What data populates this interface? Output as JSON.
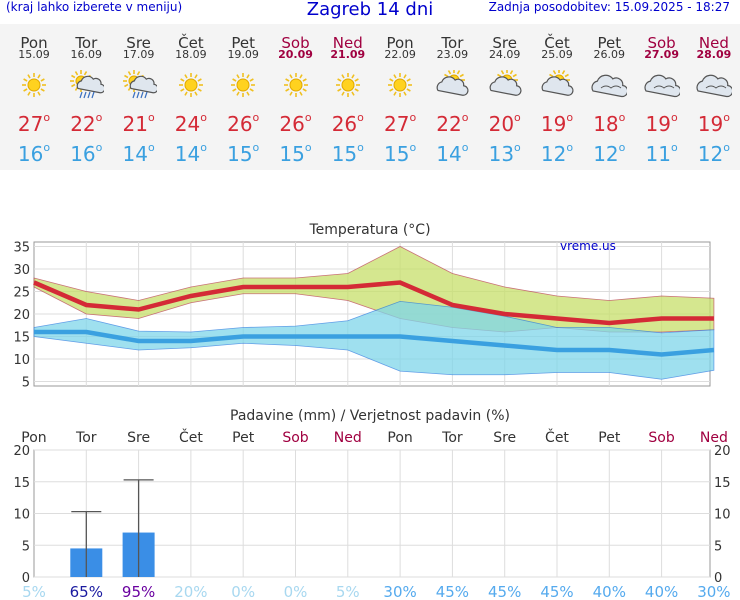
{
  "header": {
    "left_note": "(kraj lahko izberete v meniju)",
    "title": "Zagreb 14 dni",
    "updated": "Zadnja posodobitev: 15.09.2025 - 18:27"
  },
  "watermark": "vreme.us",
  "days": [
    {
      "name": "Pon",
      "date": "15.09",
      "weekend": false,
      "icon": "sunny-icon",
      "tmax": "27",
      "tmin": "16"
    },
    {
      "name": "Tor",
      "date": "16.09",
      "weekend": false,
      "icon": "sun-cloud-rain-icon",
      "tmax": "22",
      "tmin": "16"
    },
    {
      "name": "Sre",
      "date": "17.09",
      "weekend": false,
      "icon": "sun-cloud-rain-icon",
      "tmax": "21",
      "tmin": "14"
    },
    {
      "name": "Čet",
      "date": "18.09",
      "weekend": false,
      "icon": "sunny-icon",
      "tmax": "24",
      "tmin": "14"
    },
    {
      "name": "Pet",
      "date": "19.09",
      "weekend": false,
      "icon": "sunny-icon",
      "tmax": "26",
      "tmin": "15"
    },
    {
      "name": "Sob",
      "date": "20.09",
      "weekend": true,
      "icon": "sunny-icon",
      "tmax": "26",
      "tmin": "15"
    },
    {
      "name": "Ned",
      "date": "21.09",
      "weekend": true,
      "icon": "sunny-icon",
      "tmax": "26",
      "tmin": "15"
    },
    {
      "name": "Pon",
      "date": "22.09",
      "weekend": false,
      "icon": "sunny-icon",
      "tmax": "27",
      "tmin": "15"
    },
    {
      "name": "Tor",
      "date": "23.09",
      "weekend": false,
      "icon": "partly-cloudy-icon",
      "tmax": "22",
      "tmin": "14"
    },
    {
      "name": "Sre",
      "date": "24.09",
      "weekend": false,
      "icon": "partly-cloudy-icon",
      "tmax": "20",
      "tmin": "13"
    },
    {
      "name": "Čet",
      "date": "25.09",
      "weekend": false,
      "icon": "partly-cloudy-icon",
      "tmax": "19",
      "tmin": "12"
    },
    {
      "name": "Pet",
      "date": "26.09",
      "weekend": false,
      "icon": "cloudy-icon",
      "tmax": "18",
      "tmin": "12"
    },
    {
      "name": "Sob",
      "date": "27.09",
      "weekend": true,
      "icon": "cloudy-icon",
      "tmax": "19",
      "tmin": "11"
    },
    {
      "name": "Ned",
      "date": "28.09",
      "weekend": true,
      "icon": "cloudy-icon",
      "tmax": "19",
      "tmin": "12"
    }
  ],
  "colors": {
    "max": "#d42a36",
    "min": "#3aa0e0",
    "weekend": "#a00040",
    "bar": "#3a8ee6"
  },
  "chart_data": [
    {
      "type": "line",
      "title": "Temperatura (°C)",
      "categories": [
        "Pon",
        "Tor",
        "Sre",
        "Čet",
        "Pet",
        "Sob",
        "Ned",
        "Pon",
        "Tor",
        "Sre",
        "Čet",
        "Pet",
        "Sob",
        "Ned"
      ],
      "ylim": [
        4,
        36
      ],
      "yticks": [
        5,
        10,
        15,
        20,
        25,
        30,
        35
      ],
      "grid": true,
      "series": [
        {
          "role": "max",
          "values": [
            27,
            22,
            21,
            24,
            26,
            26,
            26,
            27,
            22,
            20,
            19,
            18,
            19,
            19
          ]
        },
        {
          "role": "max_upper",
          "values": [
            28,
            25,
            23,
            26,
            28,
            28,
            29,
            35,
            29,
            26,
            24,
            23,
            24,
            23.5
          ]
        },
        {
          "role": "max_lower",
          "values": [
            26,
            20,
            19,
            22.5,
            24.5,
            24.5,
            23,
            19,
            17,
            16,
            17,
            16,
            16,
            16.5
          ]
        },
        {
          "role": "min",
          "values": [
            16,
            16,
            14,
            14,
            15,
            15,
            15,
            15,
            14,
            13,
            12,
            12,
            11,
            12
          ]
        },
        {
          "role": "min_upper",
          "values": [
            17,
            19,
            16.2,
            16,
            17,
            17.3,
            18.5,
            22.8,
            21.5,
            19.5,
            17,
            17,
            15.8,
            16.5
          ]
        },
        {
          "role": "min_lower",
          "values": [
            15,
            13.5,
            12,
            12.5,
            13.5,
            13,
            12,
            7.3,
            6.5,
            6.5,
            7,
            7,
            5.5,
            7.5
          ]
        }
      ]
    },
    {
      "type": "bar",
      "title": "Padavine (mm) / Verjetnost padavin (%)",
      "categories": [
        "Pon",
        "Tor",
        "Sre",
        "Čet",
        "Pet",
        "Sob",
        "Ned",
        "Pon",
        "Tor",
        "Sre",
        "Čet",
        "Pet",
        "Sob",
        "Ned"
      ],
      "ylim": [
        0,
        20
      ],
      "yticks": [
        0,
        5,
        10,
        15,
        20
      ],
      "values": [
        0,
        4.5,
        7,
        0,
        0,
        0,
        0,
        0,
        0,
        0,
        0,
        0,
        0,
        0
      ],
      "errors_upper": [
        0,
        10.3,
        15.3,
        0,
        0,
        0,
        0,
        0,
        0,
        0,
        0,
        0,
        0,
        0
      ],
      "probability": [
        "5%",
        "65%",
        "95%",
        "20%",
        "0%",
        "0%",
        "5%",
        "30%",
        "45%",
        "45%",
        "45%",
        "40%",
        "40%",
        "30%"
      ],
      "probability_colors": [
        "#a8d8f0",
        "#1a1aa0",
        "#6a00a0",
        "#a8d8f0",
        "#a8d8f0",
        "#a8d8f0",
        "#a8d8f0",
        "#55aaee",
        "#55aaee",
        "#55aaee",
        "#55aaee",
        "#55aaee",
        "#55aaee",
        "#55aaee"
      ]
    }
  ]
}
